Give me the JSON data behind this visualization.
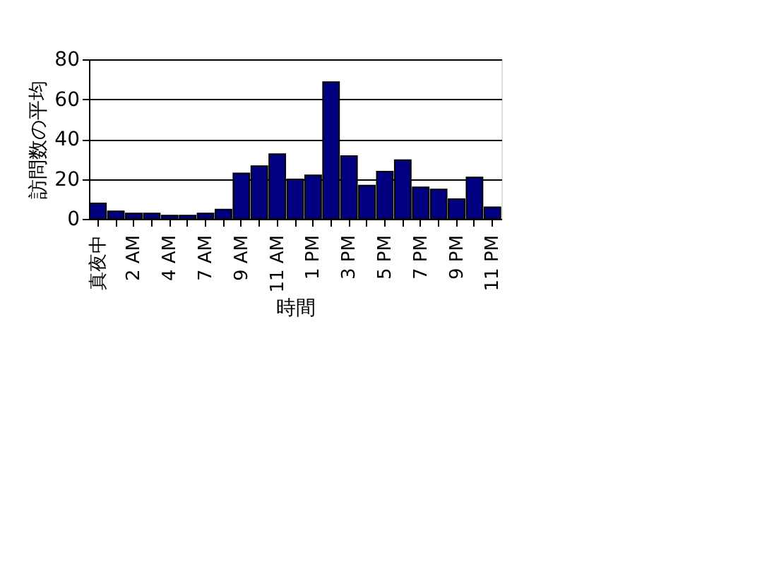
{
  "chart_data": {
    "type": "bar",
    "xlabel": "時間",
    "ylabel": "訪問数の平均",
    "categories": [
      "真夜中",
      null,
      "2 AM",
      null,
      "4 AM",
      null,
      "7 AM",
      null,
      "9 AM",
      null,
      "11 AM",
      null,
      "1 PM",
      null,
      "3 PM",
      null,
      "5 PM",
      null,
      "7 PM",
      null,
      "9 PM",
      null,
      "11 PM"
    ],
    "values": [
      7.8,
      3.8,
      2.7,
      2.7,
      1.7,
      1.7,
      2.7,
      4.7,
      22.8,
      26.5,
      32.5,
      19.8,
      21.9,
      68.6,
      31.5,
      16.7,
      23.7,
      29.5,
      15.8,
      14.8,
      9.9,
      20.8,
      5.8
    ],
    "color": "#000080",
    "ylim": [
      0,
      80
    ],
    "yticks": [
      0,
      20,
      40,
      60,
      80
    ],
    "grid": "y"
  }
}
